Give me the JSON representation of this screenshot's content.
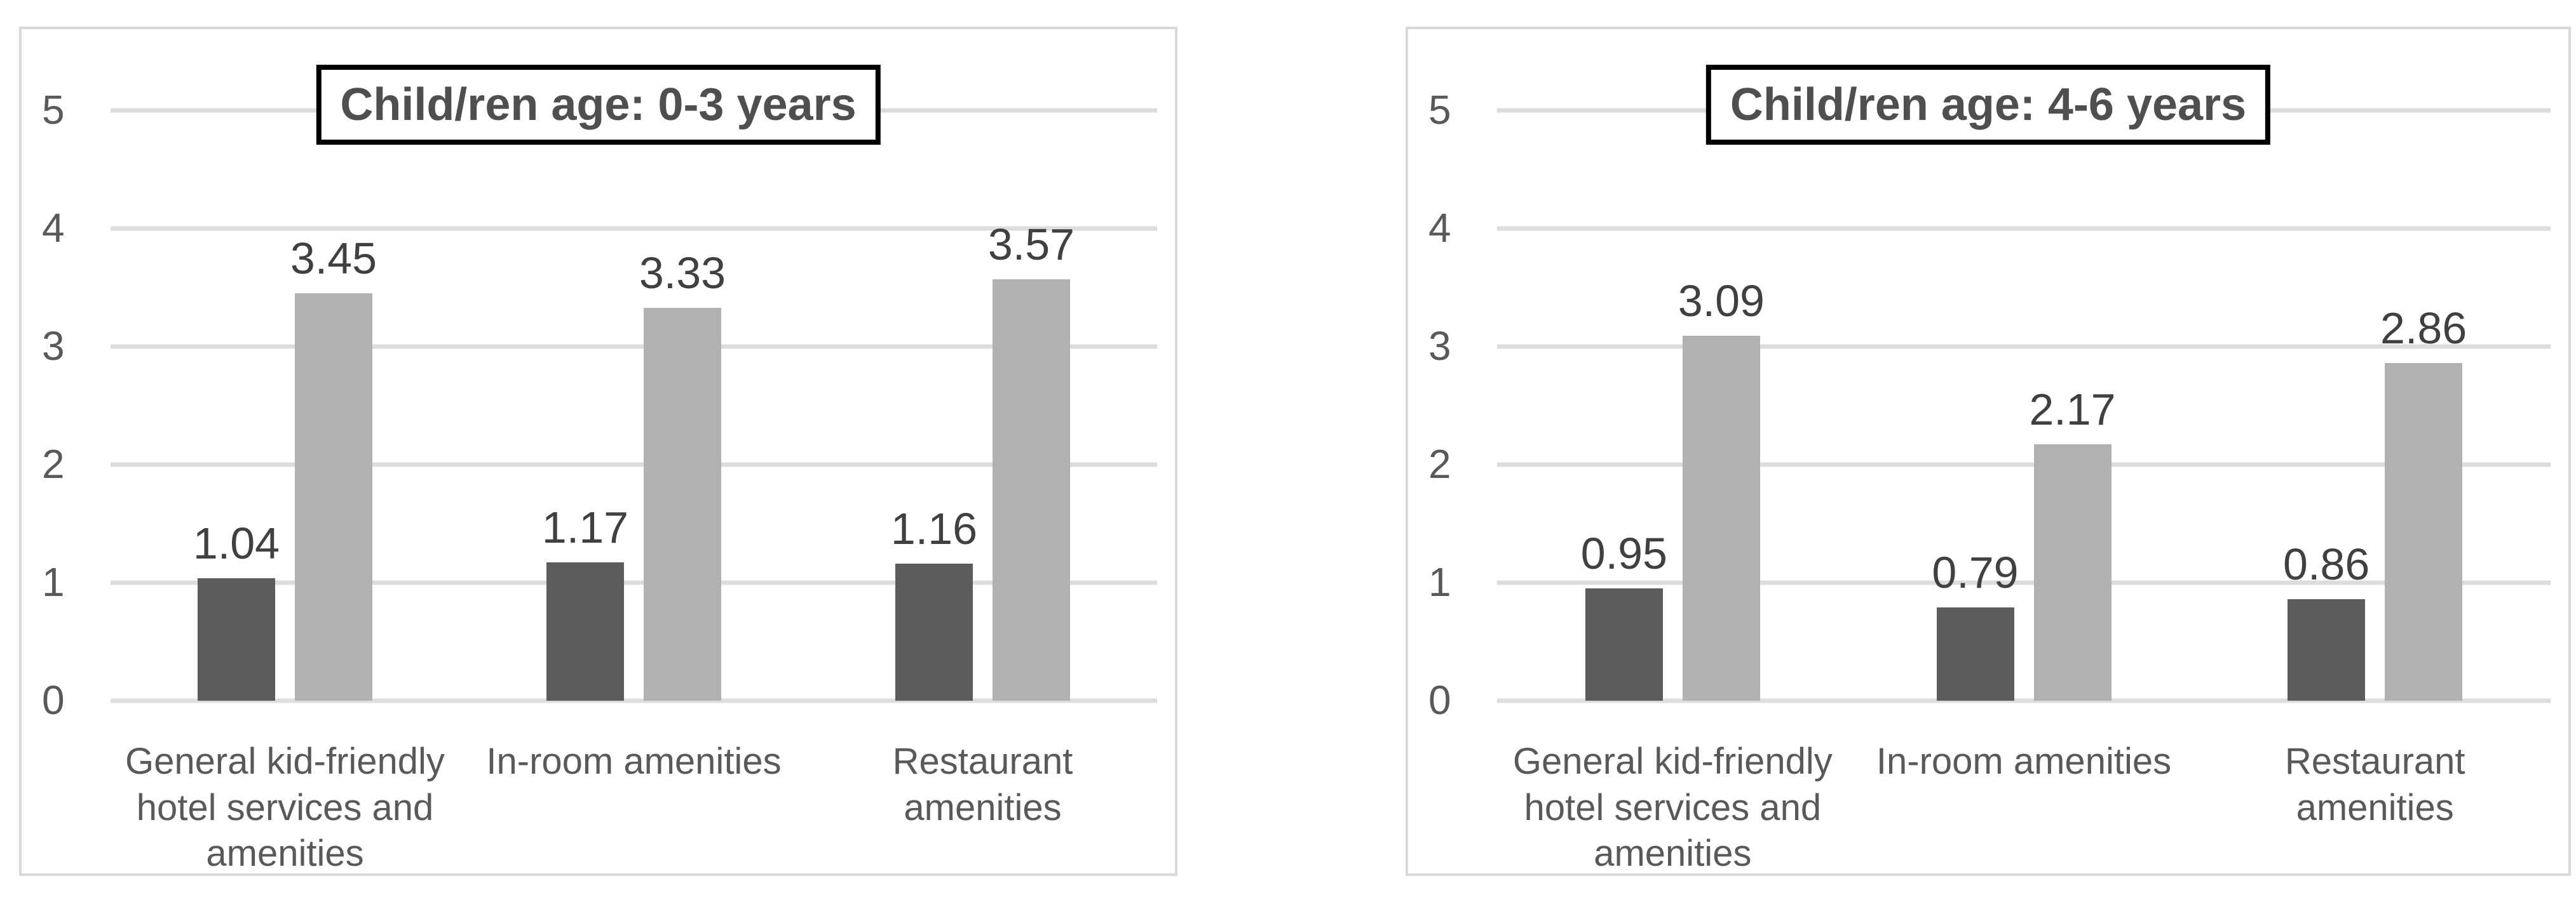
{
  "page": {
    "background": "#ffffff"
  },
  "colors": {
    "dark_bar": "#5c5c5c",
    "light_bar": "#b1b1b1",
    "gridline": "#dcdcdc",
    "panel_border": "#d9d9d9",
    "title_text": "#4f4f4f",
    "title_box_border": "#000000",
    "axis_text": "#595959",
    "value_text": "#404040"
  },
  "chart_data": [
    {
      "type": "bar",
      "title": "Child/ren age: 0-3 years",
      "categories": [
        "General kid-friendly\nhotel services and\namenities",
        "In-room amenities",
        "Restaurant\namenities"
      ],
      "series": [
        {
          "color": "#5c5c5c",
          "values": [
            1.04,
            1.17,
            1.16
          ],
          "labels": [
            "1.04",
            "1.17",
            "1.16"
          ]
        },
        {
          "color": "#b1b1b1",
          "values": [
            3.45,
            3.33,
            3.57
          ],
          "labels": [
            "3.45",
            "3.33",
            "3.57"
          ]
        }
      ],
      "xlabel": "",
      "ylabel": "",
      "ylim": [
        0,
        5
      ],
      "yticks": [
        "0",
        "1",
        "2",
        "3",
        "4",
        "5"
      ],
      "grid": true,
      "legend_position": "none"
    },
    {
      "type": "bar",
      "title": "Child/ren age: 4-6 years",
      "categories": [
        "General kid-friendly\nhotel services and\namenities",
        "In-room amenities",
        "Restaurant\namenities"
      ],
      "series": [
        {
          "color": "#5c5c5c",
          "values": [
            0.95,
            0.79,
            0.86
          ],
          "labels": [
            "0.95",
            "0.79",
            "0.86"
          ]
        },
        {
          "color": "#b1b1b1",
          "values": [
            3.09,
            2.17,
            2.86
          ],
          "labels": [
            "3.09",
            "2.17",
            "2.86"
          ]
        }
      ],
      "xlabel": "",
      "ylabel": "",
      "ylim": [
        0,
        5
      ],
      "yticks": [
        "0",
        "1",
        "2",
        "3",
        "4",
        "5"
      ],
      "grid": true,
      "legend_position": "none"
    }
  ]
}
